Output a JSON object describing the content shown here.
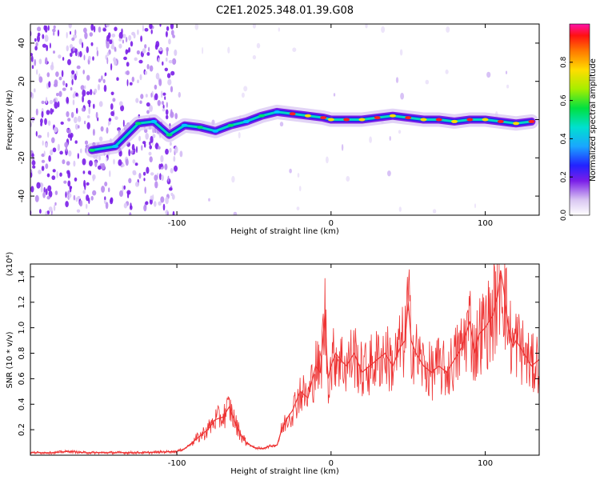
{
  "title": "C2E1.2025.348.01.39.G08",
  "chart_data": [
    {
      "type": "heatmap",
      "name": "spectrogram",
      "xlabel": "Height of straight line (km)",
      "ylabel": "Frequency (Hz)",
      "xlim": [
        -195,
        135
      ],
      "ylim": [
        -50,
        50
      ],
      "x_ticks": [
        -100,
        0,
        100
      ],
      "y_ticks": [
        -40,
        -20,
        0,
        20,
        40
      ],
      "x_tick_labels": [
        "-100",
        "0",
        "100"
      ],
      "y_tick_labels": [
        "-40",
        "-20",
        "0",
        "20",
        "40"
      ],
      "colorbar": {
        "label": "Normalized spectral amplitude",
        "range": [
          0,
          1
        ],
        "ticks": [
          0.0,
          0.2,
          0.4,
          0.6,
          0.8
        ],
        "tick_labels": [
          "0.0",
          "0.2",
          "0.4",
          "0.6",
          "0.8"
        ]
      },
      "ridge": {
        "x": [
          -155,
          -140,
          -125,
          -115,
          -105,
          -95,
          -85,
          -75,
          -65,
          -55,
          -45,
          -35,
          -25,
          -15,
          -5,
          0,
          10,
          20,
          30,
          40,
          50,
          60,
          70,
          80,
          90,
          100,
          110,
          120,
          130
        ],
        "frequency": [
          -16,
          -14,
          -2,
          -1,
          -8,
          -3,
          -4,
          -6,
          -3,
          -1,
          2,
          4,
          3,
          2,
          1,
          0,
          0,
          0,
          1,
          2,
          1,
          0,
          0,
          -1,
          0,
          0,
          -1,
          -2,
          -1
        ]
      }
    },
    {
      "type": "line",
      "name": "snr",
      "xlabel": "Height of straight line (km)",
      "ylabel": "SNR (10 * v/v)",
      "y_scale_label": "(x10⁴)",
      "xlim": [
        -195,
        135
      ],
      "ylim": [
        0,
        1.5
      ],
      "x_ticks": [
        -100,
        0,
        100
      ],
      "y_ticks": [
        0.2,
        0.4,
        0.6,
        0.8,
        1.0,
        1.2,
        1.4
      ],
      "x_tick_labels": [
        "-100",
        "0",
        "100"
      ],
      "y_tick_labels": [
        "0.2",
        "0.4",
        "0.6",
        "0.8",
        "1.0",
        "1.2",
        "1.4"
      ],
      "series": [
        {
          "name": "SNR",
          "color": "#ee3333",
          "x": [
            -195,
            -180,
            -170,
            -160,
            -140,
            -120,
            -100,
            -95,
            -90,
            -85,
            -80,
            -75,
            -70,
            -66,
            -62,
            -58,
            -55,
            -50,
            -45,
            -40,
            -35,
            -32,
            -28,
            -25,
            -20,
            -15,
            -10,
            -7,
            -4,
            -2,
            0,
            3,
            6,
            10,
            15,
            20,
            25,
            30,
            35,
            40,
            45,
            48,
            50,
            52,
            55,
            60,
            65,
            70,
            75,
            80,
            85,
            90,
            93,
            96,
            100,
            105,
            108,
            110,
            112,
            115,
            118,
            120,
            125,
            130,
            135
          ],
          "y": [
            0.02,
            0.02,
            0.03,
            0.02,
            0.02,
            0.02,
            0.03,
            0.05,
            0.1,
            0.15,
            0.2,
            0.28,
            0.3,
            0.38,
            0.25,
            0.15,
            0.1,
            0.06,
            0.05,
            0.07,
            0.08,
            0.2,
            0.3,
            0.35,
            0.5,
            0.45,
            0.7,
            0.65,
            1.1,
            0.6,
            0.7,
            0.8,
            0.75,
            0.7,
            0.8,
            0.65,
            0.7,
            0.75,
            0.8,
            0.7,
            0.85,
            0.9,
            1.2,
            0.9,
            0.8,
            0.7,
            0.65,
            0.7,
            0.65,
            0.75,
            0.85,
            1.05,
            0.8,
            0.95,
            1.0,
            1.1,
            1.25,
            1.45,
            1.3,
            1.0,
            0.85,
            0.9,
            0.8,
            0.7,
            0.75
          ]
        }
      ]
    }
  ]
}
